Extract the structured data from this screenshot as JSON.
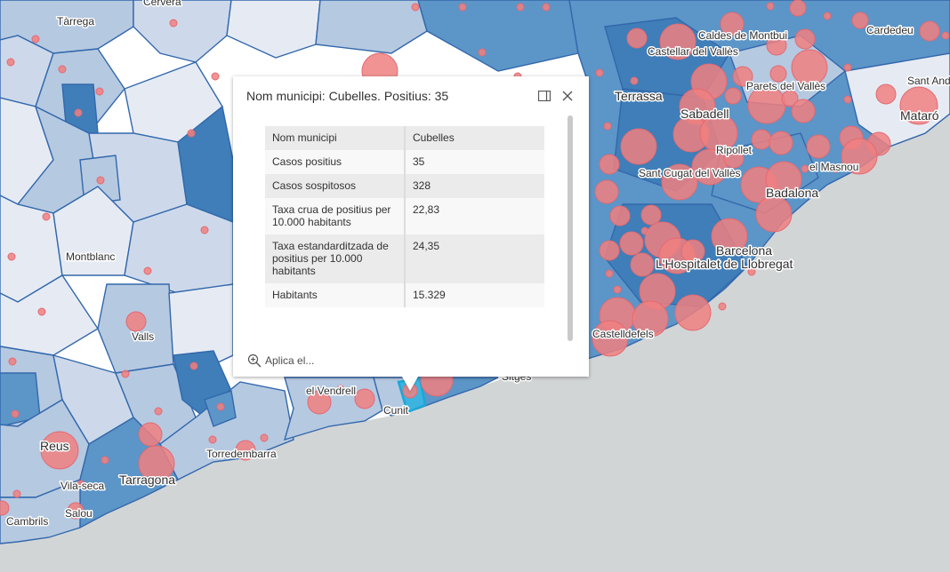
{
  "map": {
    "colors": {
      "sea": "#d2d5d6",
      "land_base": "#ffffff",
      "choropleth_light": "#e6ebf3",
      "choropleth_mid": "#b5c9e1",
      "choropleth_dark": "#5c95c7",
      "choropleth_darkest": "#3f7eb8",
      "boundary": "#3368ac",
      "circle_fill": "#f08080",
      "circle_stroke": "#e36a72",
      "selected_highlight": "#1aa8d8"
    },
    "city_labels": [
      {
        "name": "Cervera"
      },
      {
        "name": "Tàrrega"
      },
      {
        "name": "Caldes de Montbui"
      },
      {
        "name": "Cardedeu"
      },
      {
        "name": "Castellar del Vallès"
      },
      {
        "name": "Sant Andreu de Llavaneres"
      },
      {
        "name": "Terrassa"
      },
      {
        "name": "Parets del Vallès"
      },
      {
        "name": "Mataró"
      },
      {
        "name": "Sabadell"
      },
      {
        "name": "Ripollet"
      },
      {
        "name": "Sant Cugat del Vallès"
      },
      {
        "name": "el Masnou"
      },
      {
        "name": "Badalona"
      },
      {
        "name": "Barcelona"
      },
      {
        "name": "L'Hospitalet de Llobregat"
      },
      {
        "name": "Castelldefels"
      },
      {
        "name": "Montblanc"
      },
      {
        "name": "Valls"
      },
      {
        "name": "el Vendrell"
      },
      {
        "name": "Cunit"
      },
      {
        "name": "Sitges"
      },
      {
        "name": "Reus"
      },
      {
        "name": "Torredembarra"
      },
      {
        "name": "Tarragona"
      },
      {
        "name": "Vila-seca"
      },
      {
        "name": "Salou"
      },
      {
        "name": "Cambrils"
      }
    ]
  },
  "popup": {
    "title": "Nom municipi: Cubelles. Positius: 35",
    "dock_icon": "dock-icon",
    "close_icon": "close-icon",
    "rows": [
      {
        "key": "Nom municipi",
        "value": "Cubelles"
      },
      {
        "key": "Casos positius",
        "value": "35"
      },
      {
        "key": "Casos sospitosos",
        "value": "328"
      },
      {
        "key": "Taxa crua de positius per 10.000 habitants",
        "value": "22,83"
      },
      {
        "key": "Taxa estandarditzada de positius per 10.000 habitants",
        "value": "24,35"
      },
      {
        "key": "Habitants",
        "value": "15.329"
      }
    ],
    "footer_action": "Aplica el...",
    "footer_icon": "zoom-in-icon"
  }
}
